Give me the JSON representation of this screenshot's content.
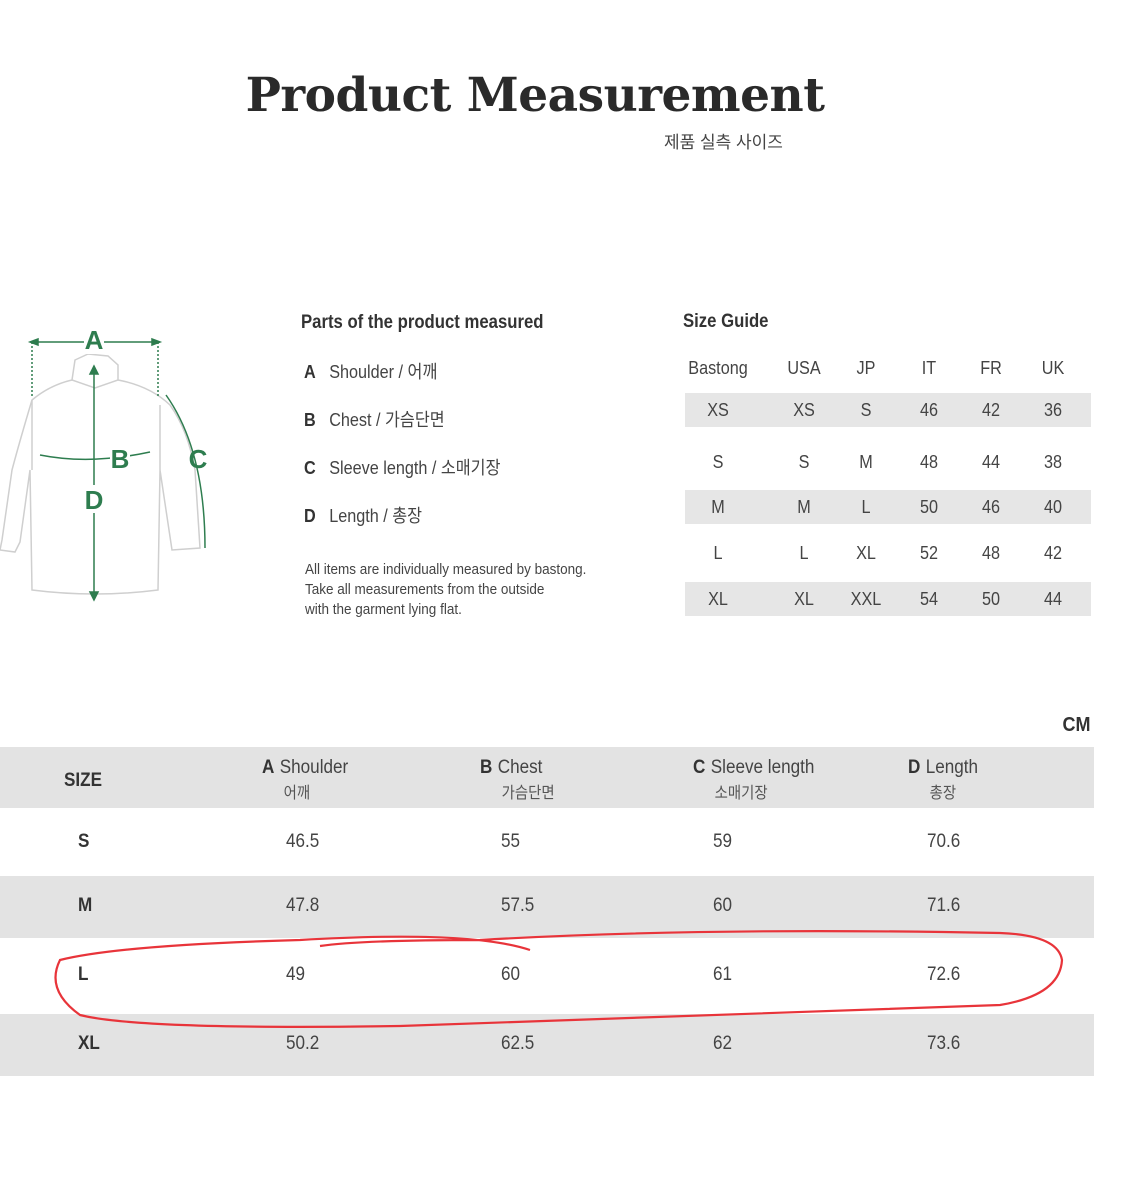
{
  "header": {
    "title": "Product Measurement",
    "subtitle": "제품 실측 사이즈"
  },
  "accent_color": "#2e7d4f",
  "annotation_color": "#e8343a",
  "diagram": {
    "icon": "shirt-measurement-diagram",
    "labels": [
      "A",
      "B",
      "C",
      "D"
    ]
  },
  "parts": {
    "title": "Parts of the product measured",
    "items": [
      {
        "letter": "A",
        "label": "Shoulder / 어깨"
      },
      {
        "letter": "B",
        "label": "Chest / 가슴단면"
      },
      {
        "letter": "C",
        "label": "Sleeve length / 소매기장"
      },
      {
        "letter": "D",
        "label": "Length / 총장"
      }
    ],
    "note": [
      "All items are individually measured by bastong.",
      "Take all measurements from the outside",
      "with the garment lying flat."
    ]
  },
  "size_guide": {
    "title": "Size Guide",
    "columns": [
      "Bastong",
      "USA",
      "JP",
      "IT",
      "FR",
      "UK"
    ],
    "rows": [
      [
        "XS",
        "XS",
        "S",
        "46",
        "42",
        "36"
      ],
      [
        "S",
        "S",
        "M",
        "48",
        "44",
        "38"
      ],
      [
        "M",
        "M",
        "L",
        "50",
        "46",
        "40"
      ],
      [
        "L",
        "L",
        "XL",
        "52",
        "48",
        "42"
      ],
      [
        "XL",
        "XL",
        "XXL",
        "54",
        "50",
        "44"
      ]
    ]
  },
  "measurements": {
    "unit": "CM",
    "size_header": "SIZE",
    "columns": [
      {
        "letter": "A",
        "label": "Shoulder",
        "ko": "어깨"
      },
      {
        "letter": "B",
        "label": "Chest",
        "ko": "가슴단면"
      },
      {
        "letter": "C",
        "label": "Sleeve length",
        "ko": "소매기장"
      },
      {
        "letter": "D",
        "label": "Length",
        "ko": "총장"
      }
    ],
    "rows": [
      {
        "size": "S",
        "values": [
          "46.5",
          "55",
          "59",
          "70.6"
        ]
      },
      {
        "size": "M",
        "values": [
          "47.8",
          "57.5",
          "60",
          "71.6"
        ]
      },
      {
        "size": "L",
        "values": [
          "49",
          "60",
          "61",
          "72.6"
        ],
        "highlighted": true
      },
      {
        "size": "XL",
        "values": [
          "50.2",
          "62.5",
          "62",
          "73.6"
        ]
      }
    ]
  }
}
